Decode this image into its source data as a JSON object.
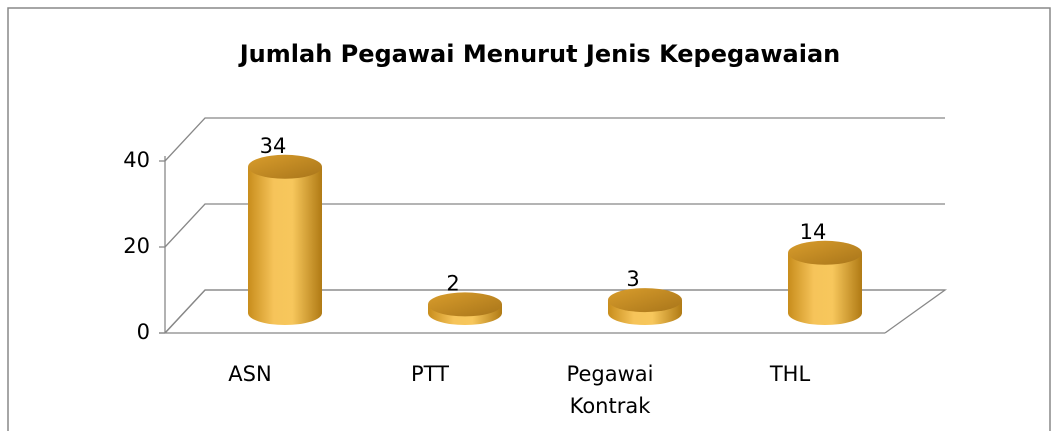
{
  "chart_data": {
    "type": "bar",
    "title": "Jumlah Pegawai Menurut Jenis Kepegawaian",
    "categories": [
      "ASN",
      "PTT",
      "Pegawai Kontrak",
      "THL"
    ],
    "values": [
      34,
      2,
      3,
      14
    ],
    "color": "#f2bb45",
    "ylim": [
      0,
      40
    ],
    "yticks": [
      0,
      20,
      40
    ],
    "grid": true
  }
}
